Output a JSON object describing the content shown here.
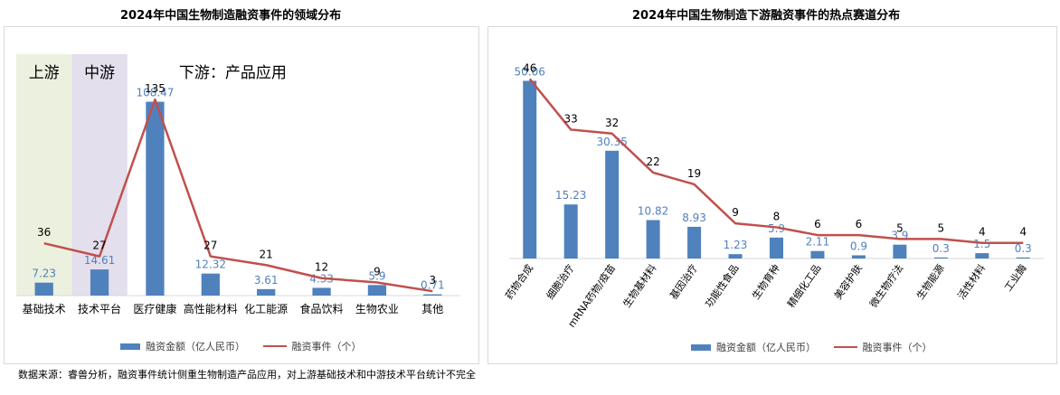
{
  "chart_data": [
    {
      "type": "bar",
      "title": "2024年中国生物制造融资事件的领域分布",
      "categories": [
        "基础技术",
        "技术平台",
        "医疗健康",
        "高性能材料",
        "化工能源",
        "食品饮料",
        "生物农业",
        "其他"
      ],
      "series": [
        {
          "name": "融资金额（亿人民币）",
          "type": "bar",
          "values": [
            7.23,
            14.61,
            108.47,
            12.32,
            3.61,
            4.33,
            5.9,
            0.71
          ]
        },
        {
          "name": "融资事件（个）",
          "type": "line",
          "values": [
            36,
            27,
            135,
            27,
            21,
            12,
            9,
            3
          ]
        }
      ],
      "regions": [
        {
          "label": "上游",
          "from": 0,
          "to": 0,
          "color": "#ebf1de"
        },
        {
          "label": "中游",
          "from": 1,
          "to": 1,
          "color": "#e4dfec"
        }
      ],
      "annotation": "下游：产品应用",
      "bar_ylim": [
        0,
        130
      ],
      "line_ylim": [
        0,
        160
      ]
    },
    {
      "type": "bar",
      "title": "2024年中国生物制造下游融资事件的热点赛道分布",
      "categories": [
        "药物合成",
        "细胞治疗",
        "mRNA药物/疫苗",
        "生物基材料",
        "基因治疗",
        "功能性食品",
        "生物育种",
        "精细化工品",
        "美容护肤",
        "微生物疗法",
        "生物能源",
        "活性材料",
        "工业酶"
      ],
      "series": [
        {
          "name": "融资金额（亿人民币）",
          "type": "bar",
          "values": [
            50.06,
            15.23,
            30.35,
            10.82,
            8.93,
            1.23,
            5.9,
            2.11,
            0.9,
            3.9,
            0.3,
            1.5,
            0.3
          ]
        },
        {
          "name": "融资事件（个）",
          "type": "line",
          "values": [
            46,
            33,
            32,
            22,
            19,
            9,
            8,
            6,
            6,
            5,
            5,
            4,
            4
          ]
        }
      ],
      "bar_ylim": [
        0,
        55
      ],
      "line_ylim": [
        0,
        50
      ]
    }
  ],
  "source_note": "数据来源：睿兽分析，融资事件统计侧重生物制造产品应用，对上游基础技术和中游技术平台统计不完全",
  "colors": {
    "bar": "#4f81bd",
    "line": "#c0504d",
    "bar_label": "#4f81bd"
  }
}
